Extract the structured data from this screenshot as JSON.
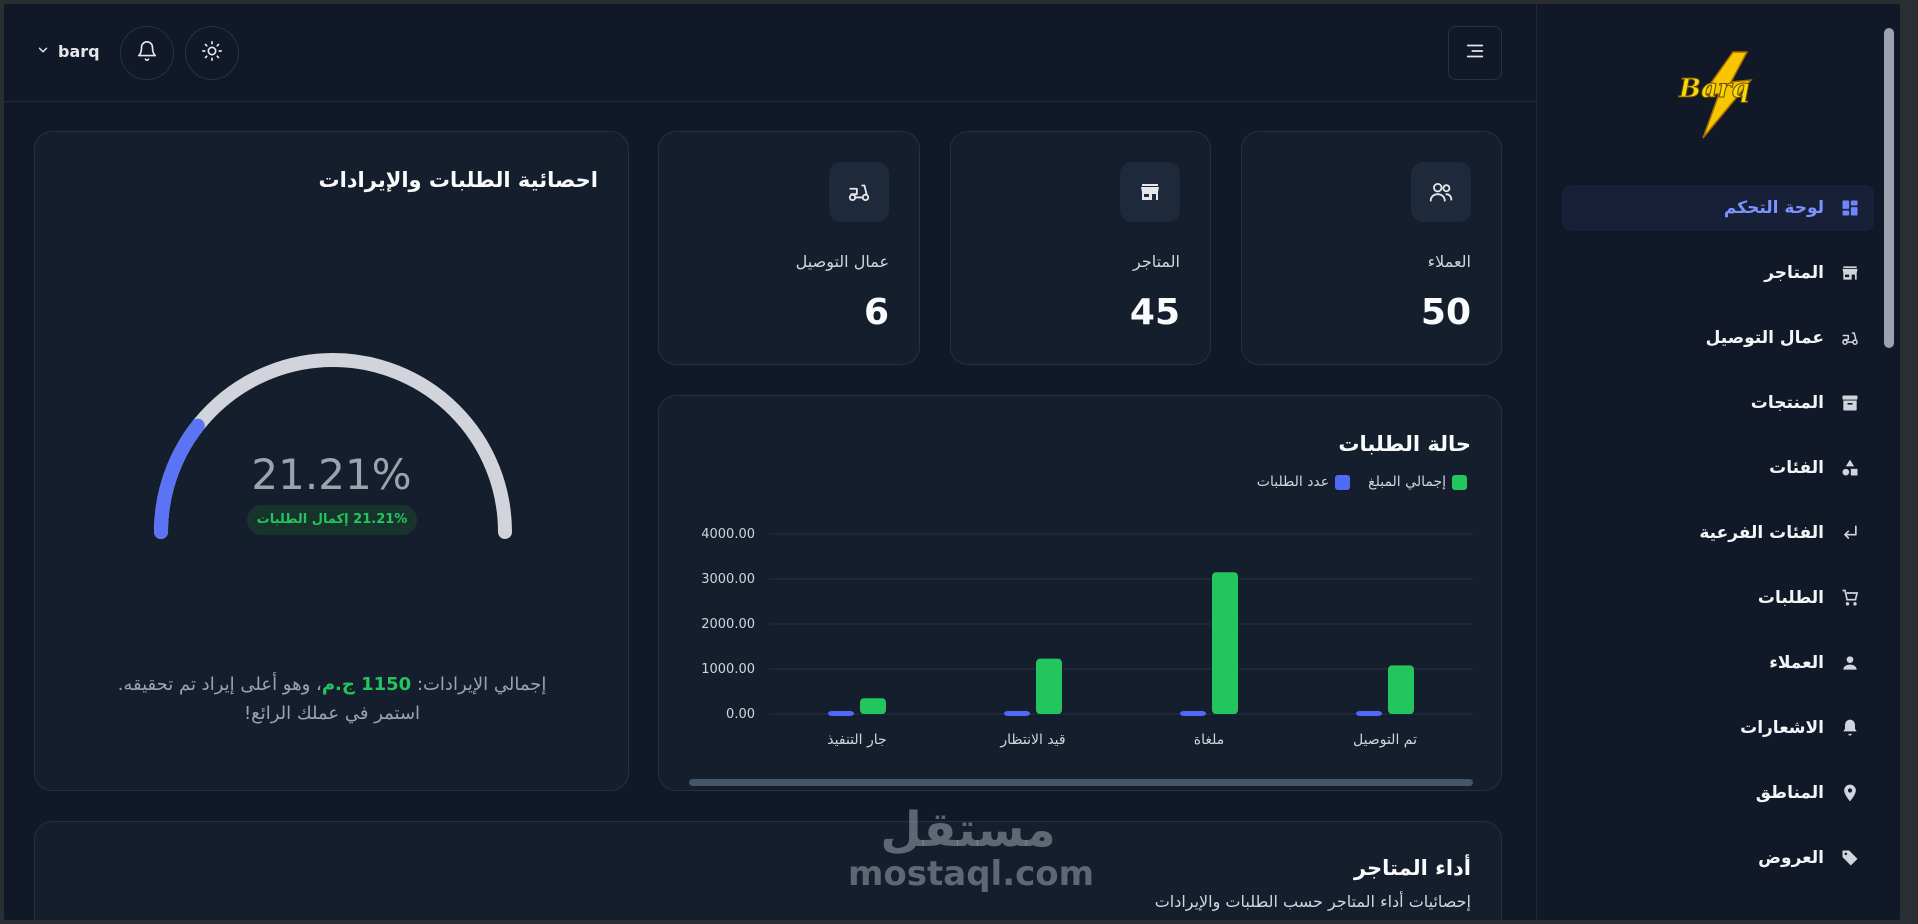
{
  "header": {
    "user_name": "barq"
  },
  "sidebar": {
    "logo_text": "Barq",
    "items": [
      {
        "label": "لوحة التحكم",
        "icon": "dashboard-icon",
        "active": true
      },
      {
        "label": "المتاجر",
        "icon": "store-icon"
      },
      {
        "label": "عمال التوصيل",
        "icon": "delivery-scooter-icon"
      },
      {
        "label": "المنتجات",
        "icon": "archive-box-icon"
      },
      {
        "label": "الفئات",
        "icon": "shapes-icon"
      },
      {
        "label": "الفئات الفرعية",
        "icon": "subdirectory-arrow-icon"
      },
      {
        "label": "الطلبات",
        "icon": "cart-icon"
      },
      {
        "label": "العملاء",
        "icon": "person-icon"
      },
      {
        "label": "الاشعارات",
        "icon": "bell-icon"
      },
      {
        "label": "المناطق",
        "icon": "location-pin-icon"
      },
      {
        "label": "العروض",
        "icon": "tag-icon"
      }
    ]
  },
  "stats": [
    {
      "label": "العملاء",
      "value": "50",
      "icon": "users-icon"
    },
    {
      "label": "المتاجر",
      "value": "45",
      "icon": "store-icon"
    },
    {
      "label": "عمال التوصيل",
      "value": "6",
      "icon": "delivery-scooter-icon"
    }
  ],
  "gauge_card": {
    "title": "احصائية الطلبات والإيرادات",
    "percent_text": "21.21%",
    "percent_value": 21.21,
    "pill_text": "21.21% إكمال الطلبات",
    "revenue_prefix": "إجمالي الإيرادات: ",
    "revenue_amount": "1150 ج.م",
    "revenue_suffix": "، وهو أعلى إيراد تم تحقيقه.",
    "revenue_line2": "استمر في عملك الرائع!",
    "colors": {
      "fill": "#5b73f5",
      "track": "#d1d5db"
    }
  },
  "orders_card": {
    "title": "حالة الطلبات"
  },
  "chart_data": {
    "type": "bar",
    "categories": [
      "تم التوصيل",
      "ملغاة",
      "قيد الانتظار",
      "جار التنفيذ"
    ],
    "series": [
      {
        "name": "إجمالي المبلغ",
        "color": "#22c55e",
        "values": [
          1080,
          3150,
          1230,
          350
        ]
      },
      {
        "name": "عدد الطلبات",
        "color": "#4f6bf5",
        "values": [
          5,
          3,
          5,
          2
        ]
      }
    ],
    "yticks": [
      "4000.00",
      "3000.00",
      "2000.00",
      "1000.00",
      "0.00"
    ],
    "ylim": [
      0,
      4000
    ],
    "legend_position": "top-right",
    "grid": true
  },
  "stores_card": {
    "title": "أداء المتاجر",
    "subtitle": "إحصائيات أداء المتاجر حسب الطلبات والإيرادات"
  },
  "watermark": {
    "arabic": "مستقل",
    "latin": "mostaql.com"
  }
}
